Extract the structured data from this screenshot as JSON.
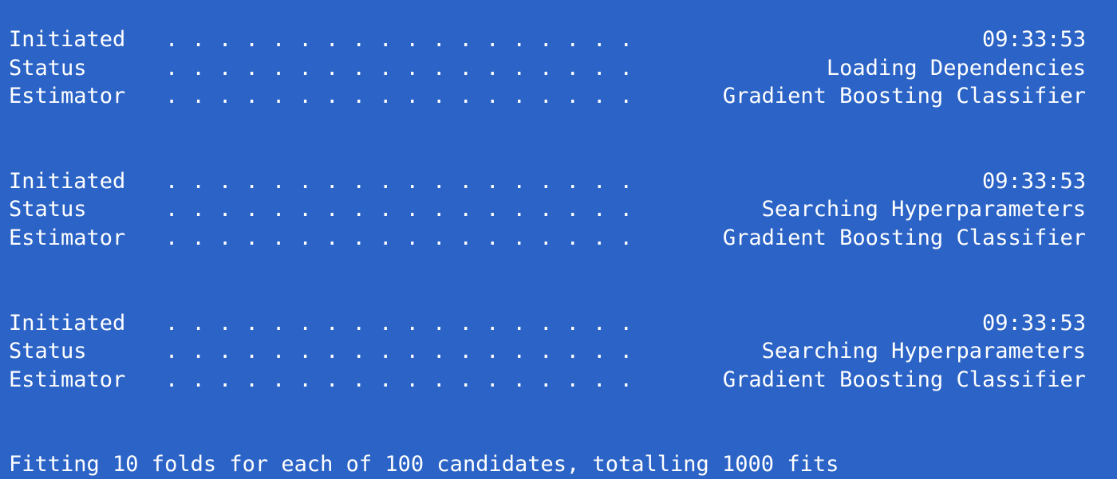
{
  "colors": {
    "background": "#2b63c6",
    "text": "#ffffff"
  },
  "dot_leader": ". . . . . . . . . . . . . . . . . . . . . . . . .",
  "blocks": [
    {
      "initiated": {
        "label": "Initiated",
        "value": "09:33:53"
      },
      "status": {
        "label": "Status",
        "value": "Loading Dependencies"
      },
      "estimator": {
        "label": "Estimator",
        "value": "Gradient Boosting Classifier"
      }
    },
    {
      "initiated": {
        "label": "Initiated",
        "value": "09:33:53"
      },
      "status": {
        "label": "Status",
        "value": "Searching Hyperparameters"
      },
      "estimator": {
        "label": "Estimator",
        "value": "Gradient Boosting Classifier"
      }
    },
    {
      "initiated": {
        "label": "Initiated",
        "value": "09:33:53"
      },
      "status": {
        "label": "Status",
        "value": "Searching Hyperparameters"
      },
      "estimator": {
        "label": "Estimator",
        "value": "Gradient Boosting Classifier"
      }
    }
  ],
  "fit_message": "Fitting 10 folds for each of 100 candidates, totalling 1000 fits"
}
